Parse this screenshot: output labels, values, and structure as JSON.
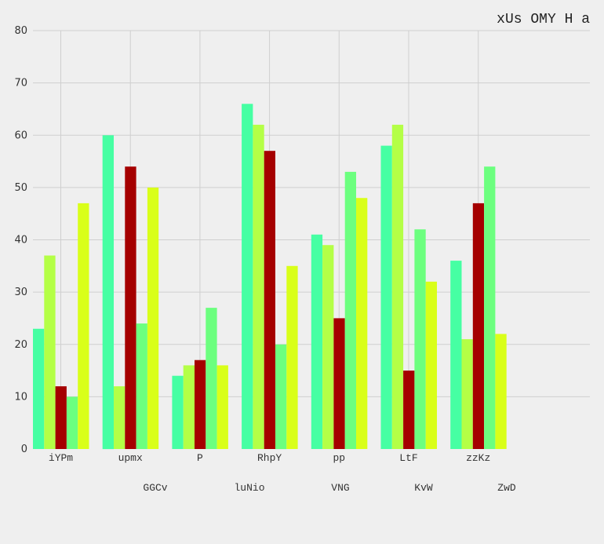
{
  "chart_data": {
    "type": "bar",
    "title": "xUs OMY H a",
    "categories": [
      "iYPm",
      "upmx",
      "P",
      "RhpY",
      "pp",
      "LtF",
      "zzKz"
    ],
    "series": [
      {
        "name": "GGCv",
        "color": "#46ffa3",
        "values": [
          23,
          60,
          14,
          66,
          41,
          58,
          36
        ]
      },
      {
        "name": "luNio",
        "color": "#b4ff46",
        "values": [
          37,
          12,
          16,
          62,
          39,
          62,
          21
        ]
      },
      {
        "name": "VNG",
        "color": "#a50000",
        "values": [
          12,
          54,
          17,
          57,
          25,
          15,
          47
        ]
      },
      {
        "name": "KvW",
        "color": "#6cff7f",
        "values": [
          10,
          24,
          27,
          20,
          53,
          42,
          54
        ]
      },
      {
        "name": "ZwD",
        "color": "#d9ff19",
        "values": [
          47,
          50,
          16,
          35,
          48,
          32,
          22
        ]
      }
    ],
    "ylim": [
      0,
      80
    ],
    "yticks": [
      0,
      10,
      20,
      30,
      40,
      50,
      60,
      70,
      80
    ],
    "grid": true,
    "legend_position": "bottom",
    "xlabel": "",
    "ylabel": ""
  }
}
